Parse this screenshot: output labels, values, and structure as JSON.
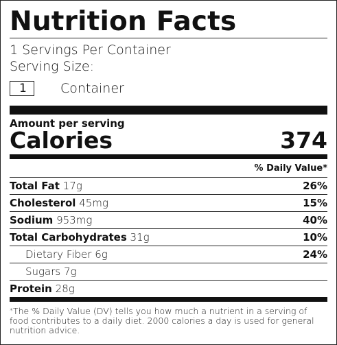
{
  "label": {
    "title": "Nutrition Facts",
    "servings_per_container": "1 Servings Per Container",
    "serving_size_label": "Serving Size:",
    "serving_size_value": "1",
    "serving_size_unit": "Container",
    "amount_per_serving": "Amount per serving",
    "calories_label": "Calories",
    "calories_value": "374",
    "dv_header": "% Daily Value*",
    "nutrients": [
      {
        "name": "Total Fat",
        "amount": "17g",
        "dv": "26%"
      },
      {
        "name": "Cholesterol",
        "amount": "45mg",
        "dv": "15%"
      },
      {
        "name": "Sodium",
        "amount": "953mg",
        "dv": "40%"
      },
      {
        "name": "Total Carbohydrates",
        "amount": "31g",
        "dv": "10%"
      },
      {
        "name": "Dietary Fiber",
        "amount": "6g",
        "dv": "24%"
      },
      {
        "name": "Sugars",
        "amount": "7g",
        "dv": ""
      },
      {
        "name": "Protein",
        "amount": "28g",
        "dv": ""
      }
    ],
    "footnote_star": "*",
    "footnote": "The % Daily Value (DV) tells you how much a nutrient in a serving of food contributes to a daily diet. 2000 calories a day is used for general nutrition advice."
  }
}
